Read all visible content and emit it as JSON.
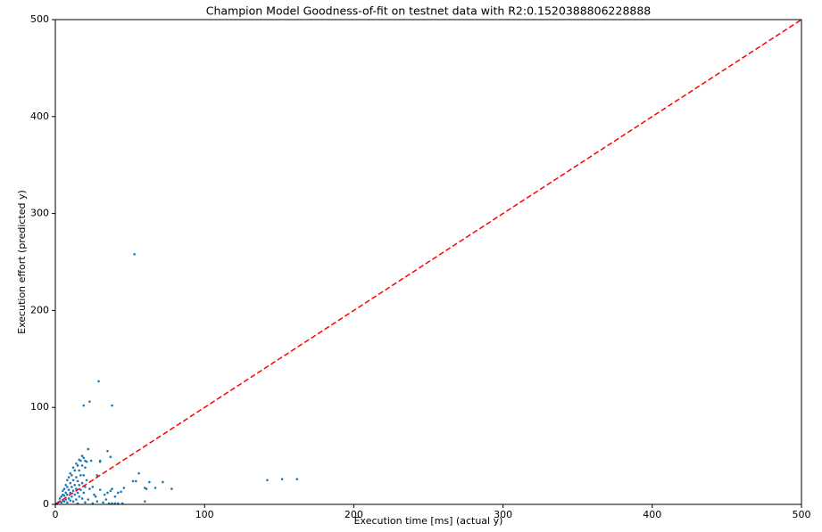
{
  "chart_data": {
    "type": "scatter",
    "title": "Champion Model Goodness-of-fit on testnet data with R2:0.1520388806228888",
    "x_label": "Execution time [ms] (actual y)",
    "y_label": "Execution effort (predicted y)",
    "color": "#1f77b4",
    "x": [
      1,
      2,
      3,
      3,
      4,
      4,
      5,
      5,
      5,
      6,
      6,
      6,
      7,
      7,
      7,
      8,
      8,
      8,
      8,
      9,
      9,
      9,
      10,
      10,
      10,
      10,
      11,
      11,
      11,
      12,
      12,
      12,
      12,
      13,
      13,
      13,
      14,
      14,
      14,
      14,
      15,
      15,
      15,
      16,
      16,
      16,
      16,
      17,
      17,
      17,
      18,
      18,
      18,
      18,
      19,
      19,
      19,
      20,
      20,
      20,
      21,
      21,
      24,
      23,
      25,
      28,
      30,
      26,
      15,
      20,
      25,
      28,
      32,
      36,
      38,
      40,
      42,
      45,
      22,
      27,
      33,
      35,
      37,
      40,
      42,
      38,
      30,
      34,
      46,
      44,
      60,
      61,
      53,
      29,
      19,
      23,
      38,
      142,
      152,
      162,
      78,
      72,
      67,
      63,
      60,
      56,
      52,
      54,
      35,
      37,
      22,
      30
    ],
    "y": [
      1,
      2,
      3,
      6,
      2,
      8,
      4,
      10,
      14,
      3,
      9,
      16,
      5,
      12,
      20,
      2,
      10,
      18,
      25,
      6,
      15,
      28,
      4,
      12,
      22,
      32,
      8,
      18,
      30,
      3,
      14,
      25,
      38,
      10,
      20,
      35,
      5,
      16,
      28,
      42,
      12,
      24,
      40,
      8,
      20,
      35,
      46,
      15,
      30,
      45,
      6,
      22,
      40,
      50,
      12,
      30,
      48,
      18,
      38,
      45,
      25,
      44,
      45,
      16,
      18,
      30,
      44,
      10,
      1,
      2,
      1,
      3,
      2,
      1,
      1,
      1,
      1,
      1,
      5,
      8,
      10,
      12,
      14,
      8,
      12,
      16,
      15,
      5,
      17,
      13,
      3,
      16,
      258,
      127,
      102,
      106,
      102,
      25,
      26,
      26,
      16,
      23,
      17,
      23,
      17,
      32,
      24,
      24,
      55,
      49,
      57,
      45
    ],
    "reference_line": {
      "x": [
        0,
        500
      ],
      "y": [
        0,
        500
      ],
      "color": "#ff0000",
      "style": "dashed"
    },
    "xlim": [
      0,
      500
    ],
    "ylim": [
      0,
      500
    ],
    "xticks": [
      0,
      100,
      200,
      300,
      400,
      500
    ],
    "yticks": [
      0,
      100,
      200,
      300,
      400,
      500
    ],
    "grid": false
  }
}
